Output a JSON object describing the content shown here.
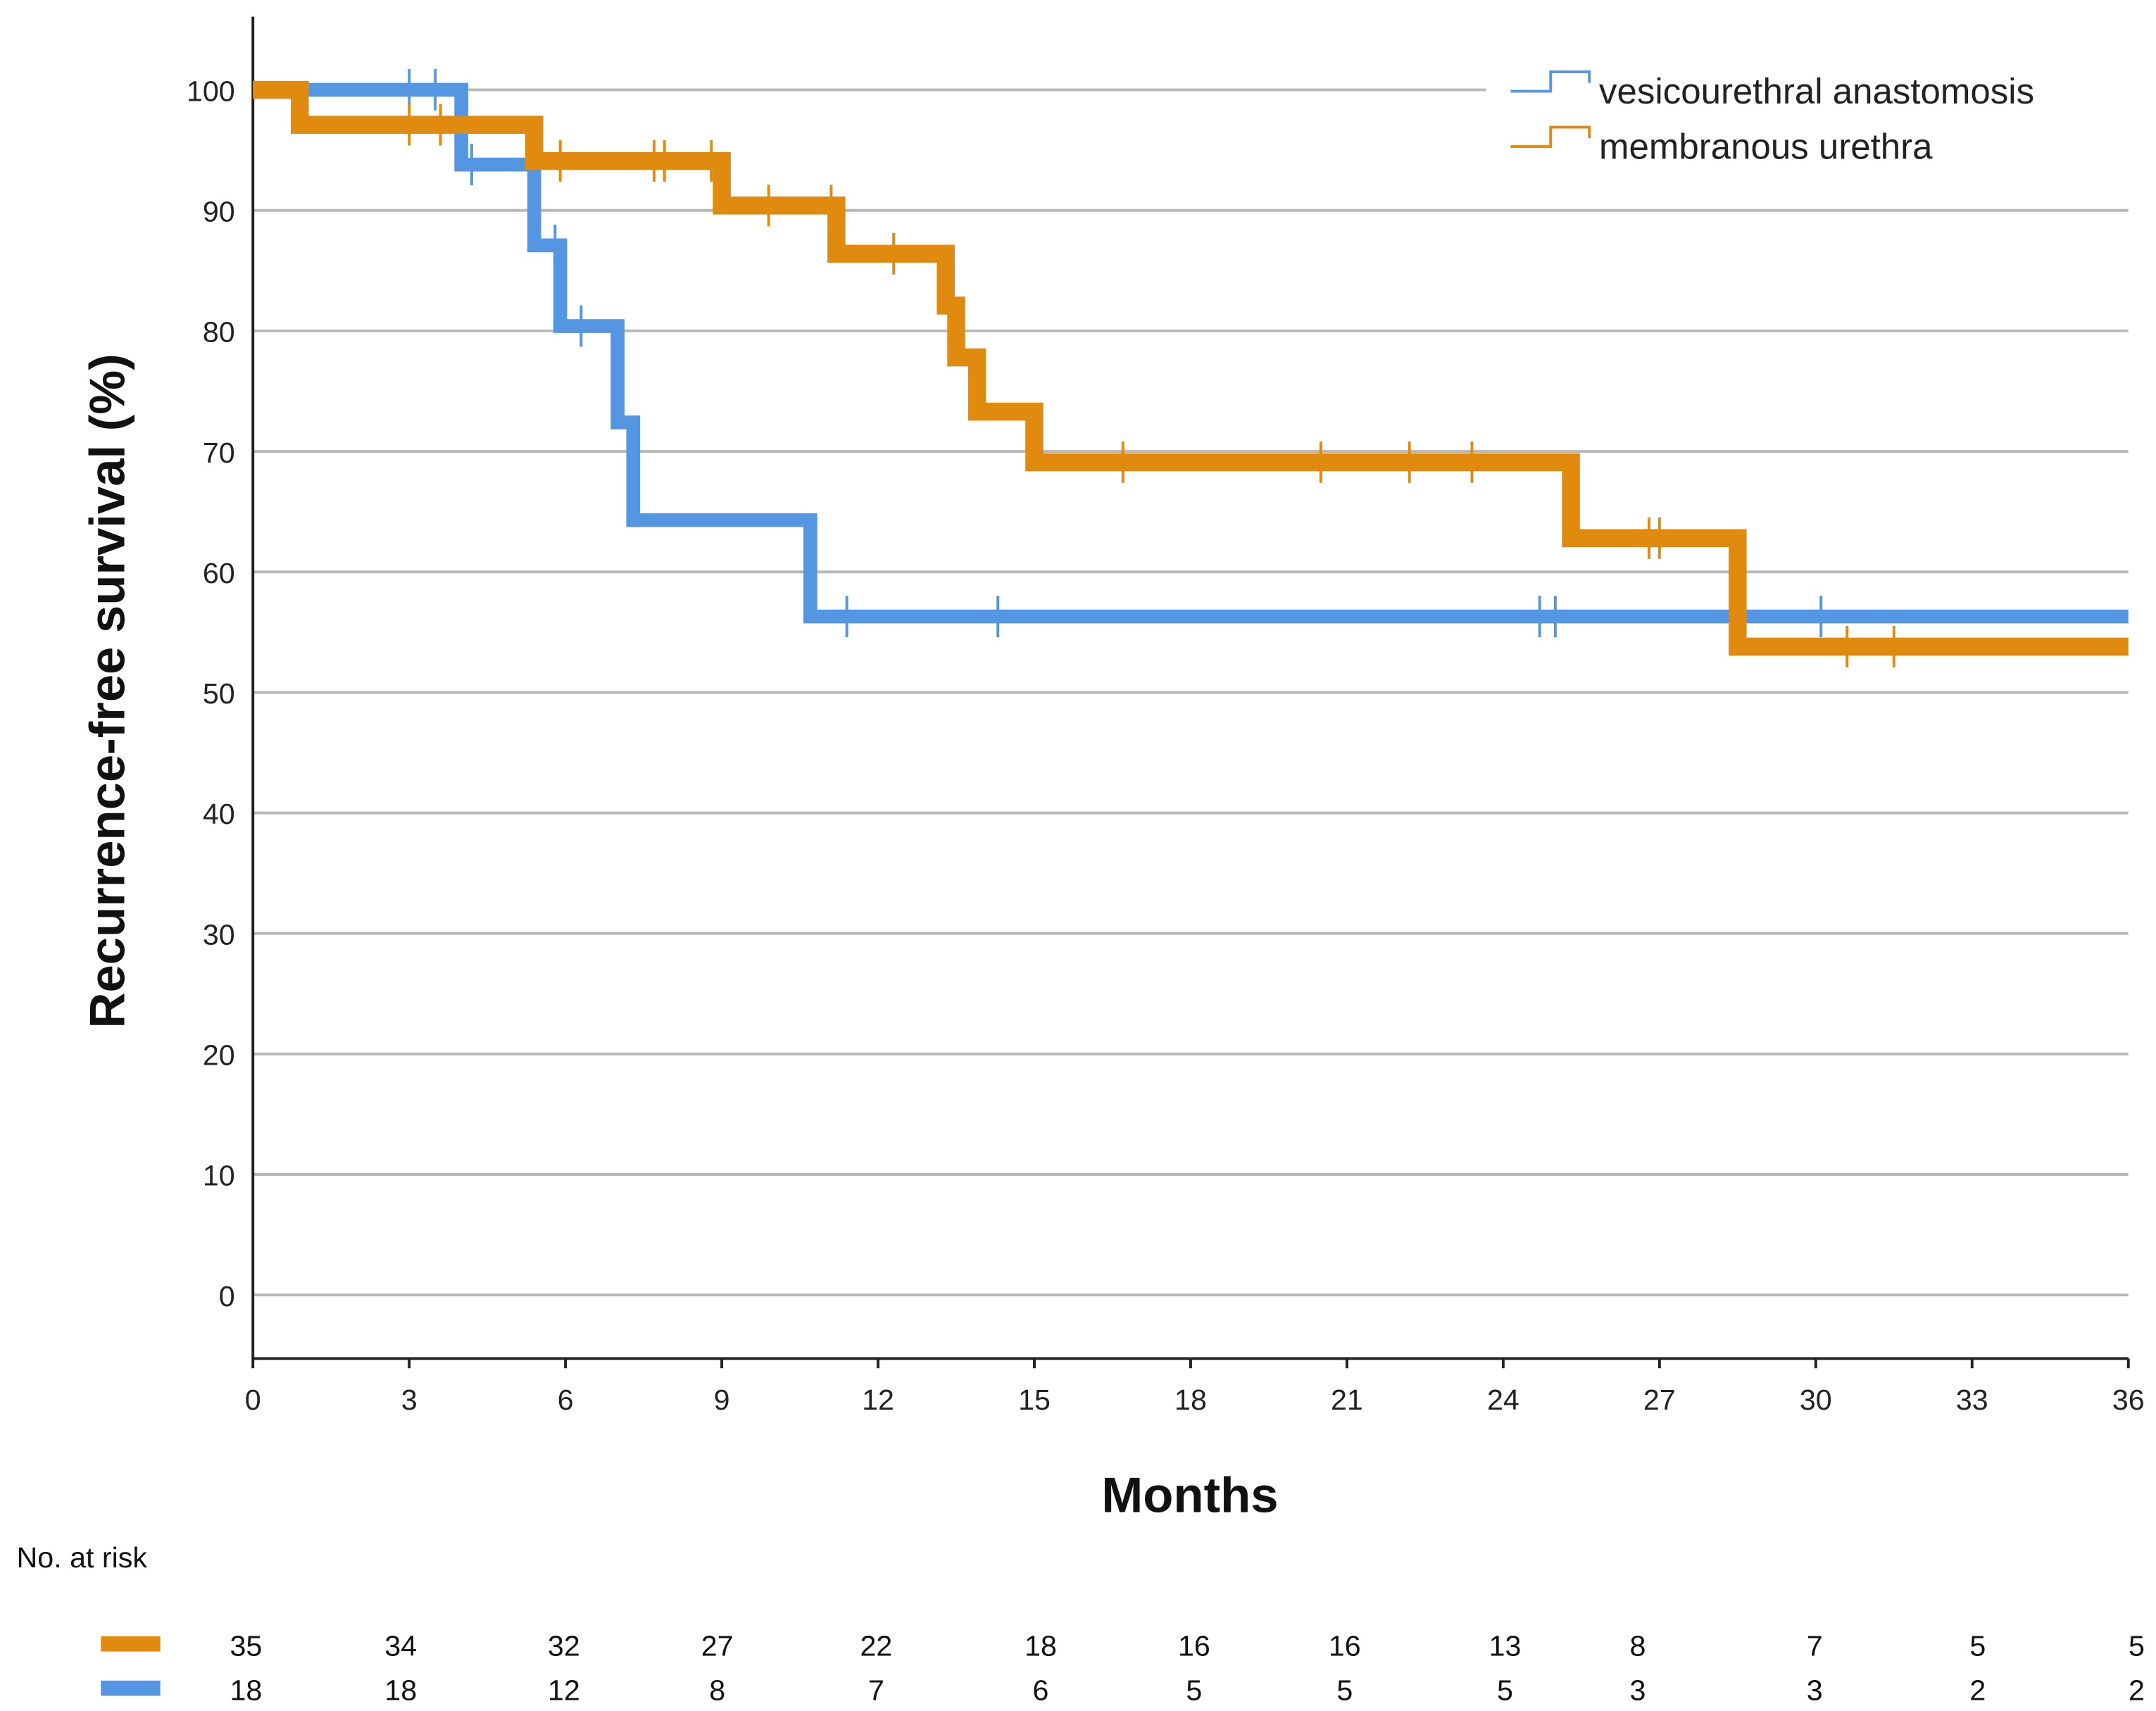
{
  "chart_data": {
    "type": "line",
    "subtype": "kaplan-meier step",
    "xlabel": "Months",
    "ylabel": "Recurrence-free survival (%)",
    "xlim": [
      0,
      36
    ],
    "ylim": [
      -5,
      110
    ],
    "xticks": [
      0,
      3,
      6,
      9,
      12,
      15,
      18,
      21,
      24,
      27,
      30,
      33,
      36
    ],
    "yticks": [
      0,
      10,
      20,
      30,
      40,
      50,
      60,
      70,
      80,
      90,
      100
    ],
    "grid": "horizontal",
    "legend_position": "top-right",
    "series": [
      {
        "name": "vesicourethral anastomosis",
        "color": "#5596e2",
        "steps": [
          [
            0,
            100
          ],
          [
            4.0,
            93.8
          ],
          [
            5.4,
            87.1
          ],
          [
            5.9,
            80.4
          ],
          [
            7.0,
            72.4
          ],
          [
            7.3,
            64.3
          ],
          [
            10.7,
            56.3
          ],
          [
            36,
            56.3
          ]
        ],
        "censored": [
          3.0,
          3.5,
          4.2,
          5.8,
          6.3,
          11.4,
          14.3,
          24.7,
          25.0,
          30.1
        ]
      },
      {
        "name": "membranous urethra",
        "color": "#e08a10",
        "steps": [
          [
            0,
            100
          ],
          [
            0.9,
            97.1
          ],
          [
            5.4,
            94.1
          ],
          [
            9.0,
            90.4
          ],
          [
            11.2,
            86.4
          ],
          [
            13.3,
            82.1
          ],
          [
            13.5,
            77.8
          ],
          [
            13.9,
            73.3
          ],
          [
            15.0,
            69.1
          ],
          [
            25.3,
            62.8
          ],
          [
            28.5,
            53.8
          ],
          [
            36,
            53.8
          ]
        ],
        "censored": [
          3.0,
          3.6,
          5.9,
          7.7,
          7.9,
          8.8,
          9.9,
          11.1,
          12.3,
          16.7,
          20.5,
          22.2,
          23.4,
          26.8,
          27.0,
          30.6,
          31.5
        ]
      }
    ],
    "risk_table": {
      "title": "No. at risk",
      "rows": [
        {
          "series": "membranous urethra",
          "color": "#e08a10",
          "values": [
            35,
            34,
            32,
            27,
            22,
            18,
            16,
            16,
            13,
            8,
            7,
            5,
            5
          ]
        },
        {
          "series": "vesicourethral anastomosis",
          "color": "#5596e2",
          "values": [
            18,
            18,
            12,
            8,
            7,
            6,
            5,
            5,
            5,
            3,
            3,
            2,
            2
          ]
        }
      ]
    }
  }
}
